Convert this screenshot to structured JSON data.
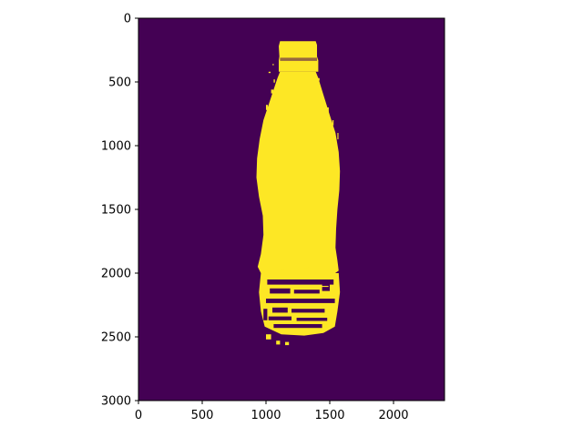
{
  "chart_data": {
    "type": "heatmap",
    "title": "",
    "xlabel": "",
    "ylabel": "",
    "image_shape": [
      3000,
      2400
    ],
    "xlim": [
      0,
      2400
    ],
    "ylim": [
      3000,
      0
    ],
    "x_ticks": [
      0,
      500,
      1000,
      1500,
      2000
    ],
    "y_ticks": [
      0,
      500,
      1000,
      1500,
      2000,
      2500,
      3000
    ],
    "x_tick_labels": [
      "0",
      "500",
      "1000",
      "1500",
      "2000"
    ],
    "y_tick_labels": [
      "0",
      "500",
      "1000",
      "1500",
      "2000",
      "2500",
      "3000"
    ],
    "colormap": "viridis",
    "values": [
      0,
      1
    ],
    "value_colors": {
      "0": "#440154",
      "1": "#fde725"
    },
    "grid": false,
    "legend": "none",
    "regions": [
      {
        "value": 1,
        "part": "bottle-cap",
        "x_range": [
          1100,
          1400
        ],
        "y_range": [
          180,
          420
        ]
      },
      {
        "value": 1,
        "part": "bottle-body",
        "x_range": [
          930,
          1600
        ],
        "y_range": [
          420,
          1980
        ]
      },
      {
        "value": 1,
        "part": "bottle-base-fragments",
        "x_range": [
          930,
          1600
        ],
        "y_range": [
          1980,
          2580
        ]
      }
    ]
  }
}
